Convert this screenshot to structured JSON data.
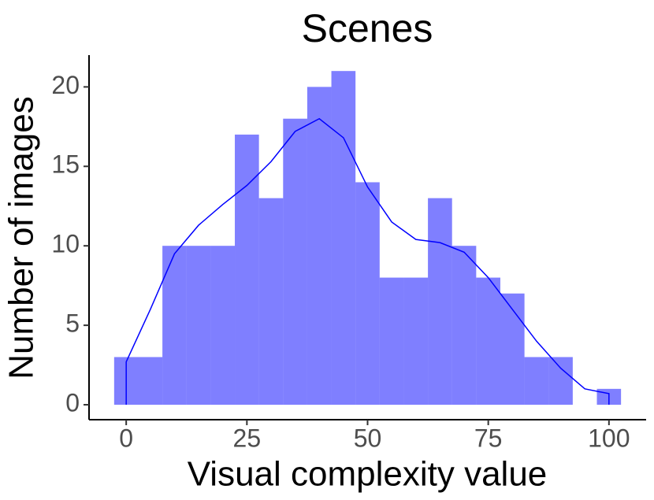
{
  "chart_data": {
    "type": "histogram",
    "title": "Scenes",
    "x_label": "Visual complexity value",
    "y_label": "Number of images",
    "bins": [
      -2.5,
      2.5,
      7.5,
      12.5,
      17.5,
      22.5,
      27.5,
      32.5,
      37.5,
      42.5,
      47.5,
      52.5,
      57.5,
      62.5,
      67.5,
      72.5,
      77.5,
      82.5,
      87.5,
      92.5,
      97.5,
      102.5
    ],
    "counts": [
      3,
      3,
      10,
      10,
      10,
      17,
      13,
      18,
      20,
      21,
      14,
      8,
      8,
      13,
      10,
      8,
      7,
      3,
      3,
      0,
      1
    ],
    "color": "#0000ff",
    "opacity": 0.5,
    "density": {
      "color": "#0000ff",
      "x": [
        0,
        5,
        10,
        15,
        20,
        25,
        30,
        35,
        40,
        45,
        50,
        55,
        60,
        65,
        70,
        75,
        80,
        85,
        90,
        95,
        100
      ],
      "values": [
        2.7,
        6,
        9.5,
        11.3,
        12.6,
        13.8,
        15.3,
        17.2,
        18,
        16.8,
        13.7,
        11.5,
        10.4,
        10.2,
        9.6,
        8,
        6,
        4,
        2.3,
        1,
        0.7
      ]
    },
    "xlim": [
      -7.7,
      107.7
    ],
    "ylim": [
      -0.94,
      22
    ],
    "xticks": [
      0,
      25,
      50,
      75,
      100
    ],
    "yticks": [
      0,
      5,
      10,
      15,
      20
    ]
  }
}
